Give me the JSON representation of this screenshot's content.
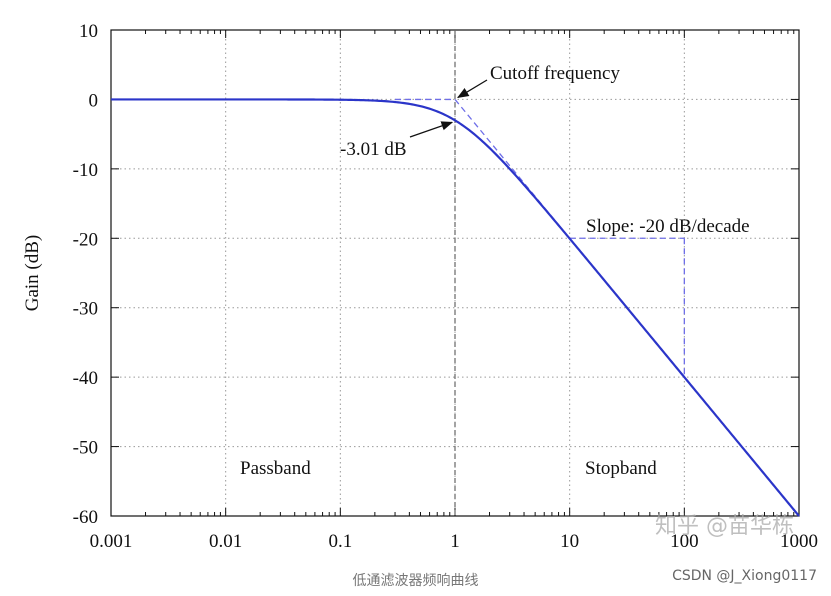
{
  "chart_data": {
    "type": "line",
    "xscale": "log",
    "xlim": [
      0.001,
      1000
    ],
    "ylim": [
      -60,
      10
    ],
    "xticks": [
      0.001,
      0.01,
      0.1,
      1,
      10,
      100,
      1000
    ],
    "xtick_labels": [
      "0.001",
      "0.01",
      "0.1",
      "1",
      "10",
      "100",
      "1000"
    ],
    "yticks": [
      10,
      0,
      -10,
      -20,
      -30,
      -40,
      -50,
      -60
    ],
    "ytick_labels": [
      "10",
      "0",
      "-10",
      "-20",
      "-30",
      "-40",
      "-50",
      "-60"
    ],
    "xlabel": "",
    "ylabel": "Gain (dB)",
    "grid": true,
    "series": [
      {
        "color": "#2b35c9",
        "x": [
          0.001,
          0.01,
          0.1,
          0.2,
          0.3,
          0.5,
          0.7,
          1,
          1.5,
          2,
          3,
          5,
          7,
          10,
          20,
          50,
          100,
          200,
          500,
          1000
        ],
        "y": [
          0,
          0,
          -0.04,
          -0.17,
          -0.37,
          -0.97,
          -1.73,
          -3.01,
          -5.12,
          -6.99,
          -10.0,
          -14.15,
          -16.99,
          -20.04,
          -26.03,
          -33.98,
          -40.0,
          -46.02,
          -53.98,
          -60.0
        ]
      }
    ],
    "asymptotes": {
      "color": "#6e6ee8",
      "lines": [
        {
          "x": [
            0.3,
            1
          ],
          "y": [
            0,
            0
          ]
        },
        {
          "x": [
            1,
            1000
          ],
          "y": [
            0,
            -60
          ]
        }
      ]
    },
    "cutoff_marker": {
      "x": 1,
      "color": "#666666"
    },
    "slope_triangle": {
      "x": [
        10,
        100
      ],
      "y": [
        -20,
        -40
      ],
      "color": "#6e6ee8"
    },
    "annotations": [
      {
        "text": "Cutoff frequency",
        "x": 1,
        "y": 0
      },
      {
        "text": "-3.01 dB",
        "x": 1,
        "y": -3.01
      },
      {
        "text": "Slope: -20 dB/decade",
        "x": 10,
        "y": -20
      },
      {
        "text": "Passband",
        "x": 0.03,
        "y": -53
      },
      {
        "text": "Stopband",
        "x": 30,
        "y": -53
      }
    ]
  },
  "watermark": "知乎 @苗华栋",
  "caption": "低通滤波器频响曲线",
  "credit": "CSDN @J_Xiong0117"
}
